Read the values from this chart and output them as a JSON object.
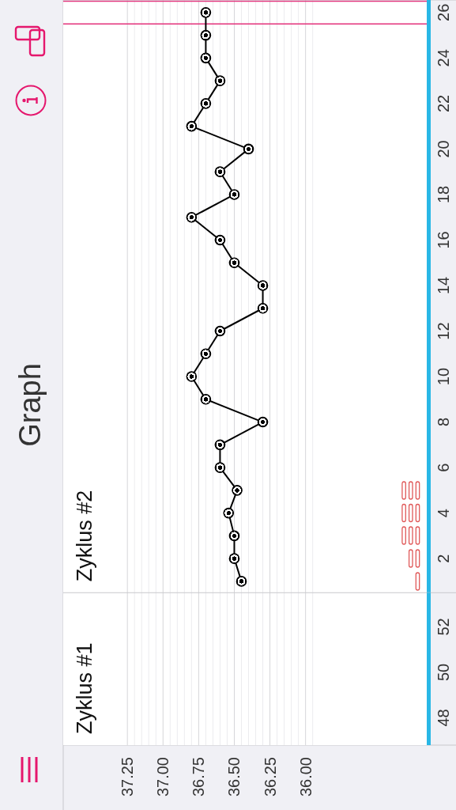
{
  "chart_data": [
    {
      "type": "line",
      "title": "Graph",
      "xlim": [
        37.7,
        35.15
      ],
      "ylim": [
        0.5,
        26.55
      ],
      "yticks": [
        2,
        4,
        6,
        8,
        10,
        12,
        14,
        16,
        18,
        20,
        22,
        24,
        26
      ],
      "tick_labels": "y",
      "grid": "x",
      "marker": "circle",
      "series": [
        {
          "color": "#000000",
          "x": [
            36.45,
            36.5,
            36.5,
            36.54,
            36.48,
            36.6,
            36.6,
            36.3,
            36.7,
            36.8,
            36.7,
            36.6,
            36.3,
            36.3,
            36.5,
            36.6,
            36.8,
            36.5,
            36.6,
            36.4,
            36.8,
            36.7,
            36.6,
            36.7,
            36.7,
            36.7
          ],
          "values": [
            1,
            2,
            3,
            4,
            5,
            6,
            7,
            8,
            9,
            10,
            11,
            12,
            13,
            14,
            15,
            16,
            17,
            18,
            19,
            20,
            21,
            22,
            23,
            24,
            25,
            26
          ]
        }
      ],
      "ref_lines": [
        {
          "axis": "y",
          "value": 25.5,
          "color": "#e3337c"
        },
        {
          "axis": "y",
          "value": 26.5,
          "color": "#e3337c"
        }
      ],
      "annotations": [
        "Zyklus #2"
      ]
    },
    {
      "type": "line",
      "xlim": [
        37.7,
        35.15
      ],
      "xticks": [
        37.25,
        {
          "value": 37.2,
          "label": null
        },
        {
          "value": 37.15,
          "label": null
        },
        {
          "value": 37.1,
          "label": null
        },
        {
          "value": 37.05,
          "label": null
        },
        {
          "value": 37,
          "label": "37.00"
        },
        {
          "value": 36.95,
          "label": null
        },
        {
          "value": 36.9,
          "label": null
        },
        {
          "value": 36.85,
          "label": null
        },
        {
          "value": 36.8,
          "label": null
        },
        36.75,
        {
          "value": 36.7,
          "label": null
        },
        {
          "value": 36.65,
          "label": null
        },
        {
          "value": 36.6,
          "label": null
        },
        {
          "value": 36.55,
          "label": null
        },
        {
          "value": 36.5,
          "label": "36.50"
        },
        {
          "value": 36.45,
          "label": null
        },
        {
          "value": 36.4,
          "label": null
        },
        {
          "value": 36.35,
          "label": null
        },
        {
          "value": 36.3,
          "label": null
        },
        36.25,
        {
          "value": 36.2,
          "label": null
        },
        {
          "value": 36.15,
          "label": null
        },
        {
          "value": 36.1,
          "label": null
        },
        {
          "value": 36.05,
          "label": null
        },
        {
          "value": 36,
          "label": "36.00"
        },
        {
          "value": 35.95,
          "label": null
        }
      ],
      "ylim": [
        46.8,
        53.5
      ],
      "yticks": [
        48,
        50,
        52
      ],
      "grid": "x",
      "annotations": [
        "Zyklus #1"
      ]
    }
  ]
}
